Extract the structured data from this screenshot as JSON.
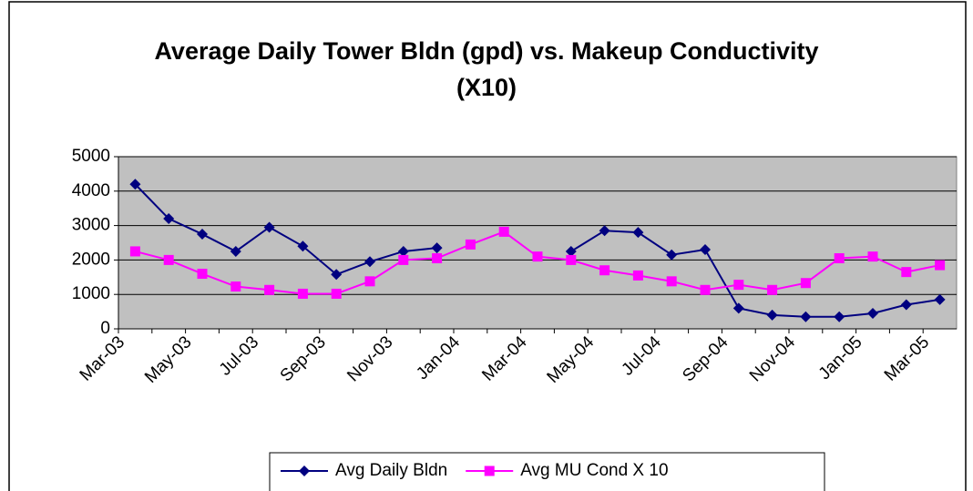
{
  "chart_data": {
    "type": "line",
    "title": "Average Daily Tower Bldn (gpd) vs. Makeup Conductivity (X10)",
    "categories": [
      "Mar-03",
      null,
      "May-03",
      null,
      "Jul-03",
      null,
      "Sep-03",
      null,
      "Nov-03",
      null,
      "Jan-04",
      null,
      "Mar-04",
      null,
      "May-04",
      null,
      "Jul-04",
      null,
      "Sep-04",
      null,
      "Nov-04",
      null,
      "Jan-05",
      null,
      "Mar-05"
    ],
    "series": [
      {
        "name": "Avg Daily Bldn",
        "color": "#000080",
        "marker": "diamond",
        "values": [
          4200,
          3200,
          2750,
          2250,
          2950,
          2400,
          1580,
          1950,
          2250,
          2350,
          null,
          null,
          null,
          2250,
          2850,
          2800,
          2150,
          2300,
          600,
          400,
          350,
          350,
          450,
          700,
          850
        ]
      },
      {
        "name": "Avg MU Cond X 10",
        "color": "#ff00ff",
        "marker": "square",
        "values": [
          2250,
          2000,
          1600,
          1230,
          1130,
          1020,
          1020,
          1380,
          2000,
          2050,
          2450,
          2820,
          2100,
          2000,
          1700,
          1550,
          1380,
          1130,
          1280,
          1130,
          1330,
          2050,
          2100,
          1650,
          1850
        ]
      }
    ],
    "ylim": [
      0,
      5000
    ],
    "yticks": [
      0,
      1000,
      2000,
      3000,
      4000,
      5000
    ],
    "grid": true,
    "plot_background": "#c0c0c0",
    "legend": "bottom"
  }
}
